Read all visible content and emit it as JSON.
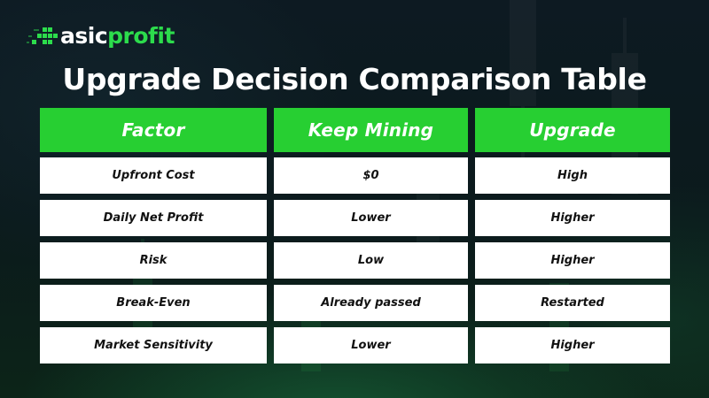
{
  "brand": {
    "logo_text_white": "asic",
    "logo_text_green": "profit",
    "accent_color": "#27cf32"
  },
  "title": "Upgrade Decision Comparison Table",
  "table": {
    "headers": [
      "Factor",
      "Keep Mining",
      "Upgrade"
    ],
    "rows": [
      [
        "Upfront Cost",
        "$0",
        "High"
      ],
      [
        "Daily Net Profit",
        "Lower",
        "Higher"
      ],
      [
        "Risk",
        "Low",
        "Higher"
      ],
      [
        "Break-Even",
        "Already passed",
        "Restarted"
      ],
      [
        "Market Sensitivity",
        "Lower",
        "Higher"
      ]
    ]
  }
}
